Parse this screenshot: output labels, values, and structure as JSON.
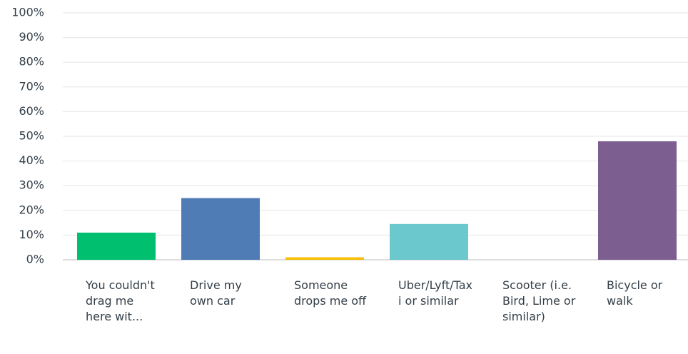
{
  "chart_data": {
    "type": "bar",
    "categories": [
      "You couldn't drag me here wit...",
      "Drive my own car",
      "Someone drops me off",
      "Uber/Lyft/Taxi or similar",
      "Scooter (i.e. Bird, Lime or similar)",
      "Bicycle or walk"
    ],
    "values": [
      11,
      25,
      1,
      14.5,
      0,
      48
    ],
    "colors": [
      "#00bf6f",
      "#507cb6",
      "#f9be00",
      "#6bc8cd",
      "#ff8b4f",
      "#7d5e90"
    ],
    "ylim": [
      0,
      100
    ],
    "yticks": [
      {
        "value": 0,
        "label": "0%"
      },
      {
        "value": 10,
        "label": "10%"
      },
      {
        "value": 20,
        "label": "20%"
      },
      {
        "value": 30,
        "label": "30%"
      },
      {
        "value": 40,
        "label": "40%"
      },
      {
        "value": 50,
        "label": "50%"
      },
      {
        "value": 60,
        "label": "60%"
      },
      {
        "value": 70,
        "label": "70%"
      },
      {
        "value": 80,
        "label": "80%"
      },
      {
        "value": 90,
        "label": "90%"
      },
      {
        "value": 100,
        "label": "100%"
      }
    ],
    "grid": true
  }
}
